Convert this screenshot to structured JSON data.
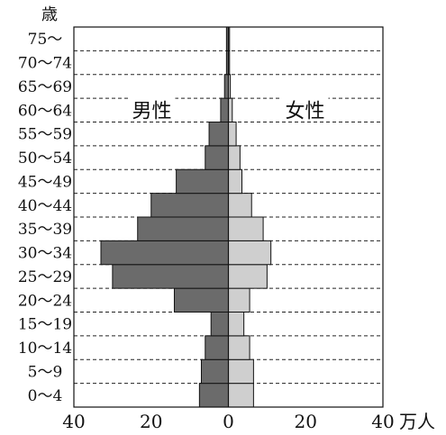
{
  "chart_data": {
    "type": "bar",
    "layout": "population-pyramid",
    "title": "",
    "ylabel": "歳",
    "xunit": "万人",
    "age_groups": [
      "0～4",
      "5～9",
      "10～14",
      "15～19",
      "20～24",
      "25～29",
      "30～34",
      "35～39",
      "40～44",
      "45～49",
      "50～54",
      "55～59",
      "60～64",
      "65～69",
      "70～74",
      "75～"
    ],
    "series": [
      {
        "name": "男性",
        "side": "left",
        "color": "#6b6b6b",
        "values": [
          7.5,
          7,
          6,
          4.5,
          14,
          30,
          33,
          23.5,
          20,
          13.5,
          6,
          5,
          2,
          1,
          0.5,
          0.5
        ]
      },
      {
        "name": "女性",
        "side": "right",
        "color": "#cfcfcf",
        "values": [
          6.5,
          6.5,
          5.5,
          4,
          5.5,
          10,
          11,
          9,
          6,
          3.5,
          3,
          2,
          1,
          0.5,
          0.3,
          0.3
        ]
      }
    ],
    "xlim": [
      0,
      40
    ],
    "xticks": [
      "40",
      "20",
      "0",
      "20",
      "40"
    ],
    "grid": "dashed horizontal"
  }
}
